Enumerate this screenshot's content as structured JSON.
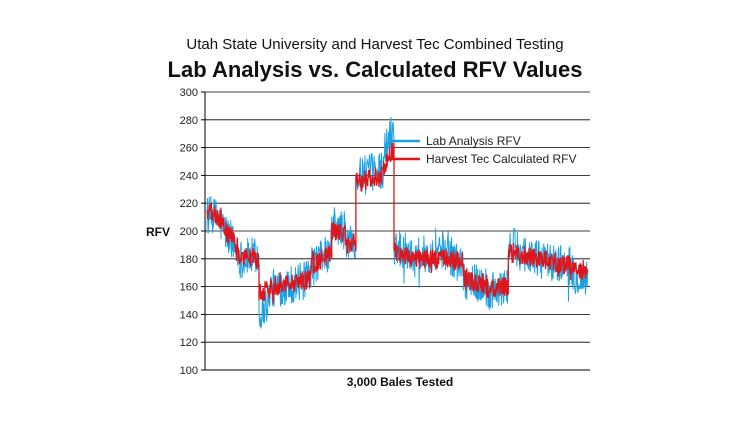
{
  "chart_data": {
    "type": "line",
    "title": "Utah State University and Harvest Tec Combined Testing",
    "subtitle": "Lab Analysis vs. Calculated RFV Values",
    "xlabel": "3,000 Bales Tested",
    "ylabel": "RFV",
    "ylim": [
      100,
      300
    ],
    "yticks": [
      100,
      120,
      140,
      160,
      180,
      200,
      220,
      240,
      260,
      280,
      300
    ],
    "grid": true,
    "legend_position": "top-right",
    "series": [
      {
        "name": "Lab Analysis RFV",
        "color": "#1ba1e2",
        "noise": 14,
        "segments": [
          {
            "span": 20,
            "start": 212,
            "end": 208
          },
          {
            "span": 25,
            "start": 205,
            "end": 185
          },
          {
            "span": 30,
            "start": 180,
            "end": 182
          },
          {
            "span": 15,
            "start": 140,
            "end": 150
          },
          {
            "span": 60,
            "start": 158,
            "end": 165
          },
          {
            "span": 30,
            "start": 175,
            "end": 185
          },
          {
            "span": 20,
            "start": 205,
            "end": 200
          },
          {
            "span": 15,
            "start": 190,
            "end": 195
          },
          {
            "span": 40,
            "start": 238,
            "end": 245
          },
          {
            "span": 15,
            "start": 255,
            "end": 275
          },
          {
            "span": 25,
            "start": 190,
            "end": 185
          },
          {
            "span": 35,
            "start": 180,
            "end": 185
          },
          {
            "span": 40,
            "start": 190,
            "end": 175
          },
          {
            "span": 35,
            "start": 165,
            "end": 160
          },
          {
            "span": 30,
            "start": 155,
            "end": 160
          },
          {
            "span": 40,
            "start": 190,
            "end": 180
          },
          {
            "span": 50,
            "start": 180,
            "end": 175
          },
          {
            "span": 25,
            "start": 170,
            "end": 165
          }
        ]
      },
      {
        "name": "Harvest Tec Calculated RFV",
        "color": "#e0151b",
        "noise": 7,
        "segments": [
          {
            "span": 20,
            "start": 215,
            "end": 208
          },
          {
            "span": 25,
            "start": 205,
            "end": 188
          },
          {
            "span": 30,
            "start": 182,
            "end": 180
          },
          {
            "span": 15,
            "start": 155,
            "end": 158
          },
          {
            "span": 60,
            "start": 160,
            "end": 165
          },
          {
            "span": 30,
            "start": 175,
            "end": 185
          },
          {
            "span": 20,
            "start": 200,
            "end": 198
          },
          {
            "span": 15,
            "start": 188,
            "end": 192
          },
          {
            "span": 40,
            "start": 235,
            "end": 240
          },
          {
            "span": 15,
            "start": 245,
            "end": 260
          },
          {
            "span": 25,
            "start": 185,
            "end": 182
          },
          {
            "span": 35,
            "start": 180,
            "end": 180
          },
          {
            "span": 40,
            "start": 180,
            "end": 178
          },
          {
            "span": 35,
            "start": 165,
            "end": 160
          },
          {
            "span": 30,
            "start": 158,
            "end": 160
          },
          {
            "span": 40,
            "start": 185,
            "end": 180
          },
          {
            "span": 50,
            "start": 180,
            "end": 175
          },
          {
            "span": 25,
            "start": 172,
            "end": 168
          }
        ]
      }
    ]
  }
}
